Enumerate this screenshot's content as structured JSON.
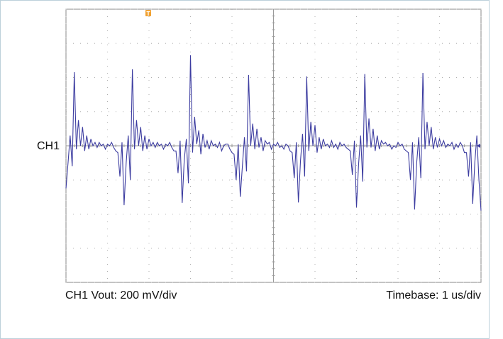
{
  "chart_data": {
    "type": "line",
    "channel_label": "CH1 Vout: 200 mV/div",
    "timebase_label": "Timebase: 1 us/div",
    "xlim": [
      -5,
      5
    ],
    "ylim": [
      -800,
      800
    ],
    "xticks": [
      -5,
      -4,
      -3,
      -2,
      -1,
      0,
      1,
      2,
      3,
      4,
      5
    ],
    "yticks": [
      -800,
      -600,
      -400,
      -200,
      0,
      200,
      400,
      600,
      800
    ],
    "grid": true,
    "x": [
      -5,
      -4.95,
      -4.9,
      -4.85,
      -4.8,
      -4.75,
      -4.7,
      -4.65,
      -4.6,
      -4.55,
      -4.5,
      -4.45,
      -4.4,
      -4.35,
      -4.3,
      -4.25,
      -4.2,
      -4.15,
      -4.1,
      -4.05,
      -4,
      -3.95,
      -3.9,
      -3.85,
      -3.8,
      -3.75,
      -3.7,
      -3.65,
      -3.6,
      -3.55,
      -3.5,
      -3.45,
      -3.4,
      -3.35,
      -3.3,
      -3.25,
      -3.2,
      -3.15,
      -3.1,
      -3.05,
      -3,
      -2.95,
      -2.9,
      -2.85,
      -2.8,
      -2.75,
      -2.7,
      -2.65,
      -2.6,
      -2.55,
      -2.5,
      -2.45,
      -2.4,
      -2.35,
      -2.3,
      -2.25,
      -2.2,
      -2.15,
      -2.1,
      -2.05,
      -2,
      -1.95,
      -1.9,
      -1.85,
      -1.8,
      -1.75,
      -1.7,
      -1.65,
      -1.6,
      -1.55,
      -1.5,
      -1.45,
      -1.4,
      -1.35,
      -1.3,
      -1.25,
      -1.2,
      -1.15,
      -1.1,
      -1.05,
      -1,
      -0.95,
      -0.9,
      -0.85,
      -0.8,
      -0.75,
      -0.7,
      -0.65,
      -0.6,
      -0.55,
      -0.5,
      -0.45,
      -0.4,
      -0.35,
      -0.3,
      -0.25,
      -0.2,
      -0.15,
      -0.1,
      -0.05,
      0,
      0.05,
      0.1,
      0.15,
      0.2,
      0.25,
      0.3,
      0.35,
      0.4,
      0.45,
      0.5,
      0.55,
      0.6,
      0.65,
      0.7,
      0.75,
      0.8,
      0.85,
      0.9,
      0.95,
      1,
      1.05,
      1.1,
      1.15,
      1.2,
      1.25,
      1.3,
      1.35,
      1.4,
      1.45,
      1.5,
      1.55,
      1.6,
      1.65,
      1.7,
      1.75,
      1.8,
      1.85,
      1.9,
      1.95,
      2,
      2.05,
      2.1,
      2.15,
      2.2,
      2.25,
      2.3,
      2.35,
      2.4,
      2.45,
      2.5,
      2.55,
      2.6,
      2.65,
      2.7,
      2.75,
      2.8,
      2.85,
      2.9,
      2.95,
      3,
      3.05,
      3.1,
      3.15,
      3.2,
      3.25,
      3.3,
      3.35,
      3.4,
      3.45,
      3.5,
      3.55,
      3.6,
      3.65,
      3.7,
      3.75,
      3.8,
      3.85,
      3.9,
      3.95,
      4,
      4.05,
      4.1,
      4.15,
      4.2,
      4.25,
      4.3,
      4.35,
      4.4,
      4.45,
      4.5,
      4.55,
      4.6,
      4.65,
      4.7,
      4.75,
      4.8,
      4.85,
      4.9,
      4.95,
      5
    ],
    "series": [
      {
        "name": "CH1",
        "color": "#3c3ca0",
        "values": [
          -250,
          -100,
          60,
          -120,
          431,
          -20,
          150,
          0,
          110,
          -30,
          60,
          -20,
          40,
          0,
          20,
          -10,
          20,
          0,
          10,
          -20,
          10,
          0,
          20,
          -10,
          -30,
          -40,
          -180,
          20,
          -348,
          -100,
          60,
          -200,
          448,
          -20,
          150,
          0,
          110,
          -30,
          60,
          -20,
          40,
          0,
          20,
          -10,
          20,
          0,
          10,
          -20,
          10,
          0,
          20,
          -10,
          -30,
          -30,
          -160,
          30,
          -335,
          -80,
          40,
          -220,
          530,
          -40,
          170,
          10,
          90,
          -50,
          70,
          -10,
          30,
          -20,
          30,
          0,
          10,
          -10,
          20,
          -30,
          0,
          10,
          10,
          -20,
          -40,
          -50,
          -200,
          10,
          -298,
          -120,
          50,
          -150,
          415,
          0,
          130,
          -20,
          100,
          -10,
          50,
          -30,
          30,
          10,
          20,
          -20,
          10,
          0,
          20,
          -10,
          0,
          -20,
          10,
          0,
          -30,
          -40,
          -190,
          20,
          -332,
          -90,
          70,
          -180,
          406,
          -30,
          140,
          0,
          120,
          -40,
          50,
          -20,
          40,
          0,
          10,
          -10,
          30,
          -10,
          10,
          -20,
          20,
          0,
          10,
          -10,
          -20,
          -30,
          -170,
          30,
          -360,
          -110,
          60,
          -210,
          420,
          -10,
          160,
          -10,
          100,
          -30,
          60,
          -20,
          30,
          10,
          20,
          0,
          10,
          -20,
          0,
          -10,
          20,
          0,
          10,
          -20,
          -30,
          -40,
          -200,
          20,
          -373,
          -100,
          50,
          -190,
          427,
          -20,
          140,
          0,
          110,
          -20,
          50,
          -10,
          40,
          0,
          30,
          -10,
          10,
          0,
          20,
          -20,
          10,
          -10,
          20,
          0,
          -40,
          -40,
          -180,
          20,
          -340,
          -100,
          60,
          -200,
          -380
        ]
      }
    ]
  }
}
